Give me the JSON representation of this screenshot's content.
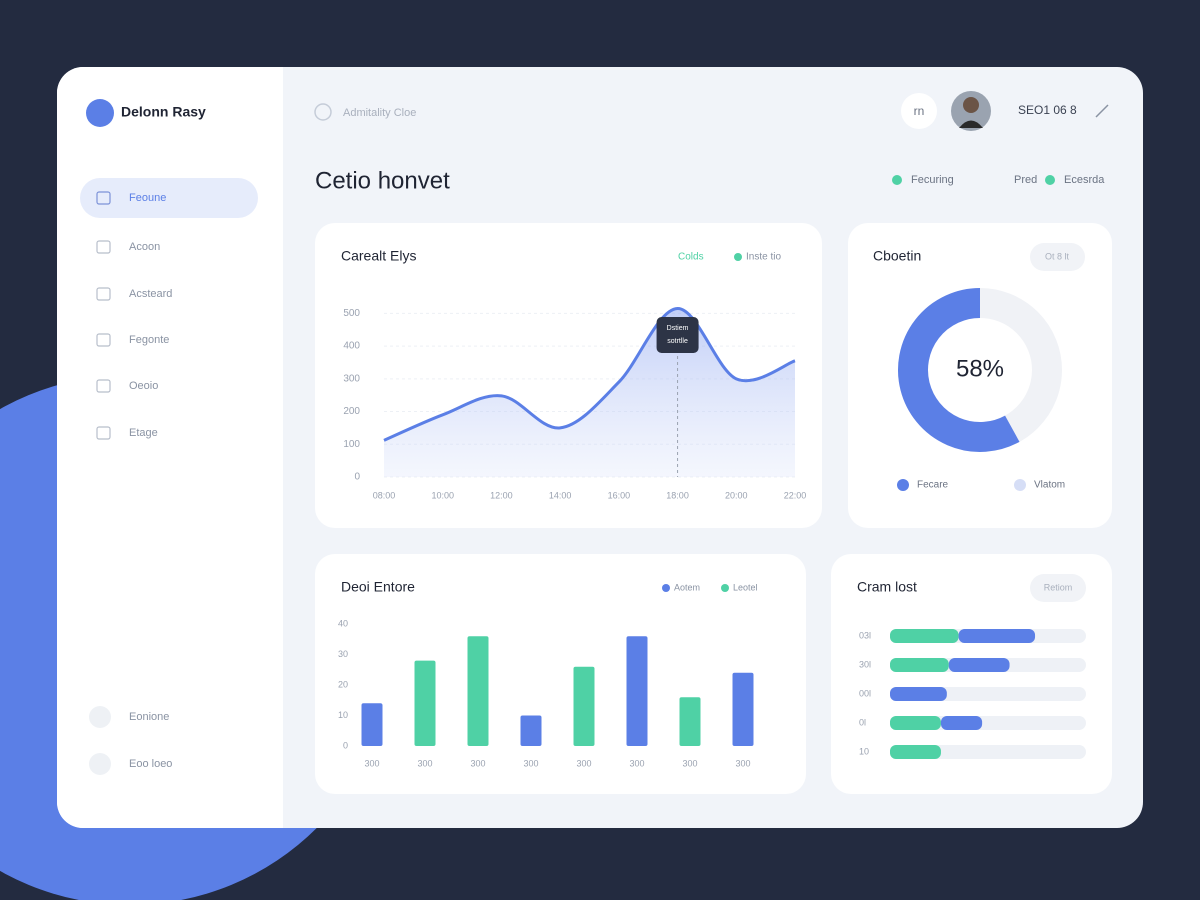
{
  "brand": "Delonn Rasy",
  "search": "Admitality Cloe",
  "header": {
    "initials": "rn",
    "account": "SEO1 06 8"
  },
  "page_title": "Cetio honvet",
  "top_legend": [
    "Fecuring",
    "Pred",
    "Ecesrda"
  ],
  "nav": [
    "Feoune",
    "Acoon",
    "Acsteard",
    "Fegonte",
    "Oeoio",
    "Etage"
  ],
  "nav_bottom": [
    "Eonione",
    "Eoo loeo"
  ],
  "line_card": {
    "type": "line",
    "title": "Carealt Elys",
    "legend": [
      "Colds",
      "Inste tio"
    ],
    "categories": [
      "08:00",
      "10:00",
      "12:00",
      "14:00",
      "16:00",
      "18:00",
      "20:00",
      "22:00"
    ],
    "series": [
      {
        "name": "Colds",
        "color": "#5b7fe6",
        "values": [
          112,
          190,
          248,
          150,
          290,
          515,
          300,
          355
        ]
      }
    ],
    "ylim": [
      0,
      550
    ],
    "yticks": [
      0,
      100,
      200,
      300,
      400,
      500
    ],
    "grid": true,
    "tooltip": [
      "Dstiem",
      "sotrtlle"
    ]
  },
  "donut_card": {
    "type": "pie",
    "title": "Cboetin",
    "button": "Ot 8 lt",
    "value": 58,
    "value_label": "58%",
    "color": "#5b7fe6",
    "legend": [
      "Fecare",
      "Vlatom"
    ]
  },
  "bar_card": {
    "type": "bar",
    "title": "Deoi Entore",
    "categories": [
      "300",
      "300",
      "300",
      "300",
      "300",
      "300",
      "300",
      "300"
    ],
    "series": [
      {
        "name": "Aotem",
        "color": "#5b7fe6",
        "values": [
          14,
          null,
          null,
          10,
          null,
          36,
          null,
          24
        ]
      },
      {
        "name": "Leotel",
        "color": "#4fd1a5",
        "values": [
          null,
          28,
          36,
          null,
          26,
          null,
          16,
          null
        ]
      }
    ],
    "ylim": [
      0,
      40
    ],
    "yticks": [
      0,
      10,
      20,
      30,
      40
    ]
  },
  "hbar_card": {
    "type": "bar",
    "title": "Cram lost",
    "button": "Retiom",
    "categories": [
      "03l",
      "30l",
      "00l",
      "0l",
      "10"
    ],
    "series": [
      {
        "color": "#4fd1a5",
        "values": [
          35,
          30,
          0,
          26,
          26
        ]
      },
      {
        "color": "#5b7fe6",
        "values": [
          39,
          31,
          29,
          21,
          0
        ]
      }
    ],
    "xlim": [
      0,
      100
    ]
  }
}
